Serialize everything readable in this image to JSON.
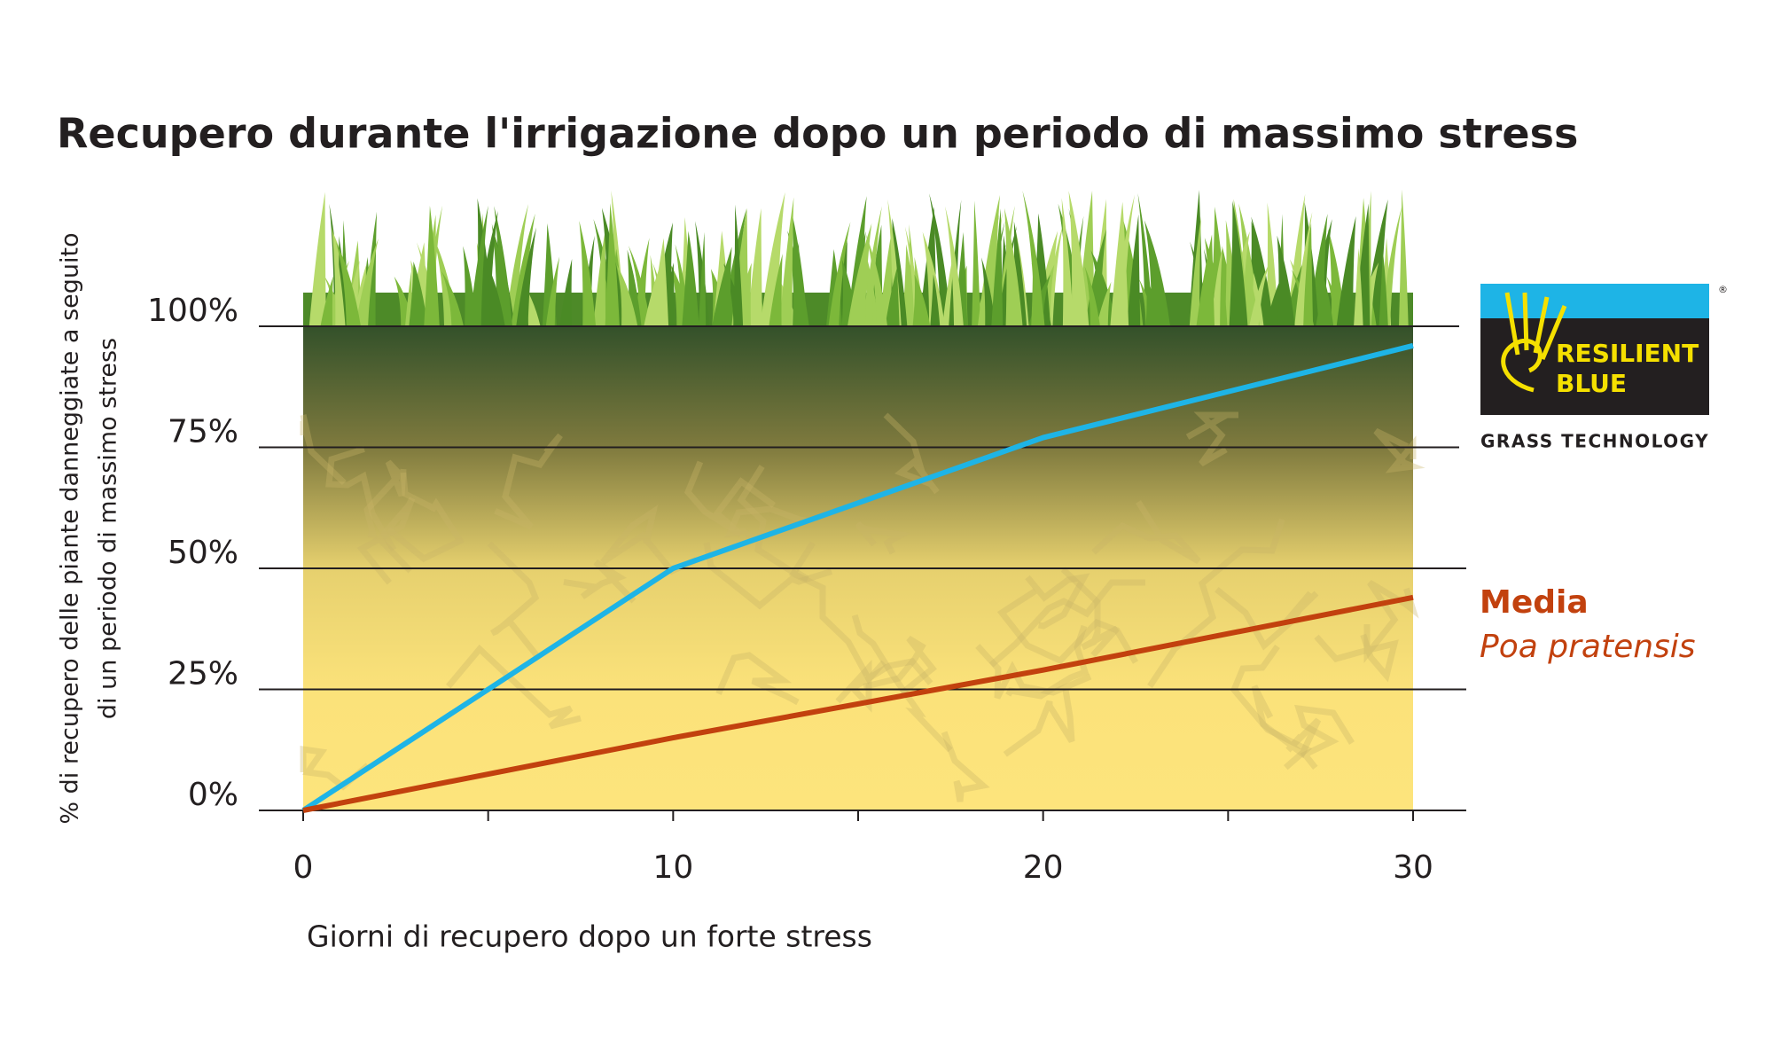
{
  "chart_data": {
    "type": "line",
    "title": "Recupero durante l'irrigazione dopo un periodo di massimo stress",
    "y_label": [
      "% di recupero delle piante danneggiate a seguito",
      "di un periodo di massimo stress"
    ],
    "x_label": "Giorni di recupero dopo un forte stress",
    "x": [
      0,
      10,
      20,
      30
    ],
    "series": [
      {
        "label": [
          "RESILIENT",
          "BLUE"
        ],
        "color": "#1eb4e6",
        "values": [
          0,
          50,
          77,
          96
        ]
      },
      {
        "label": [
          "Media",
          "Poa pratensis"
        ],
        "color": "#c2410e",
        "values": [
          0,
          15,
          29,
          44
        ]
      }
    ],
    "xlim": [
      0,
      30
    ],
    "xticks": [
      0,
      10,
      20,
      30
    ],
    "minor_xticks": [
      5,
      15,
      25
    ],
    "ylim": [
      0,
      100
    ],
    "yticks": [
      {
        "value": 0,
        "label": "0%"
      },
      {
        "value": 25,
        "label": "25%"
      },
      {
        "value": 50,
        "label": "50%"
      },
      {
        "value": 75,
        "label": "75%"
      },
      {
        "value": 100,
        "label": "100%"
      }
    ],
    "grid": true,
    "logo": {
      "registered": "®",
      "tagline": "GRASS TECHNOLOGY"
    }
  }
}
